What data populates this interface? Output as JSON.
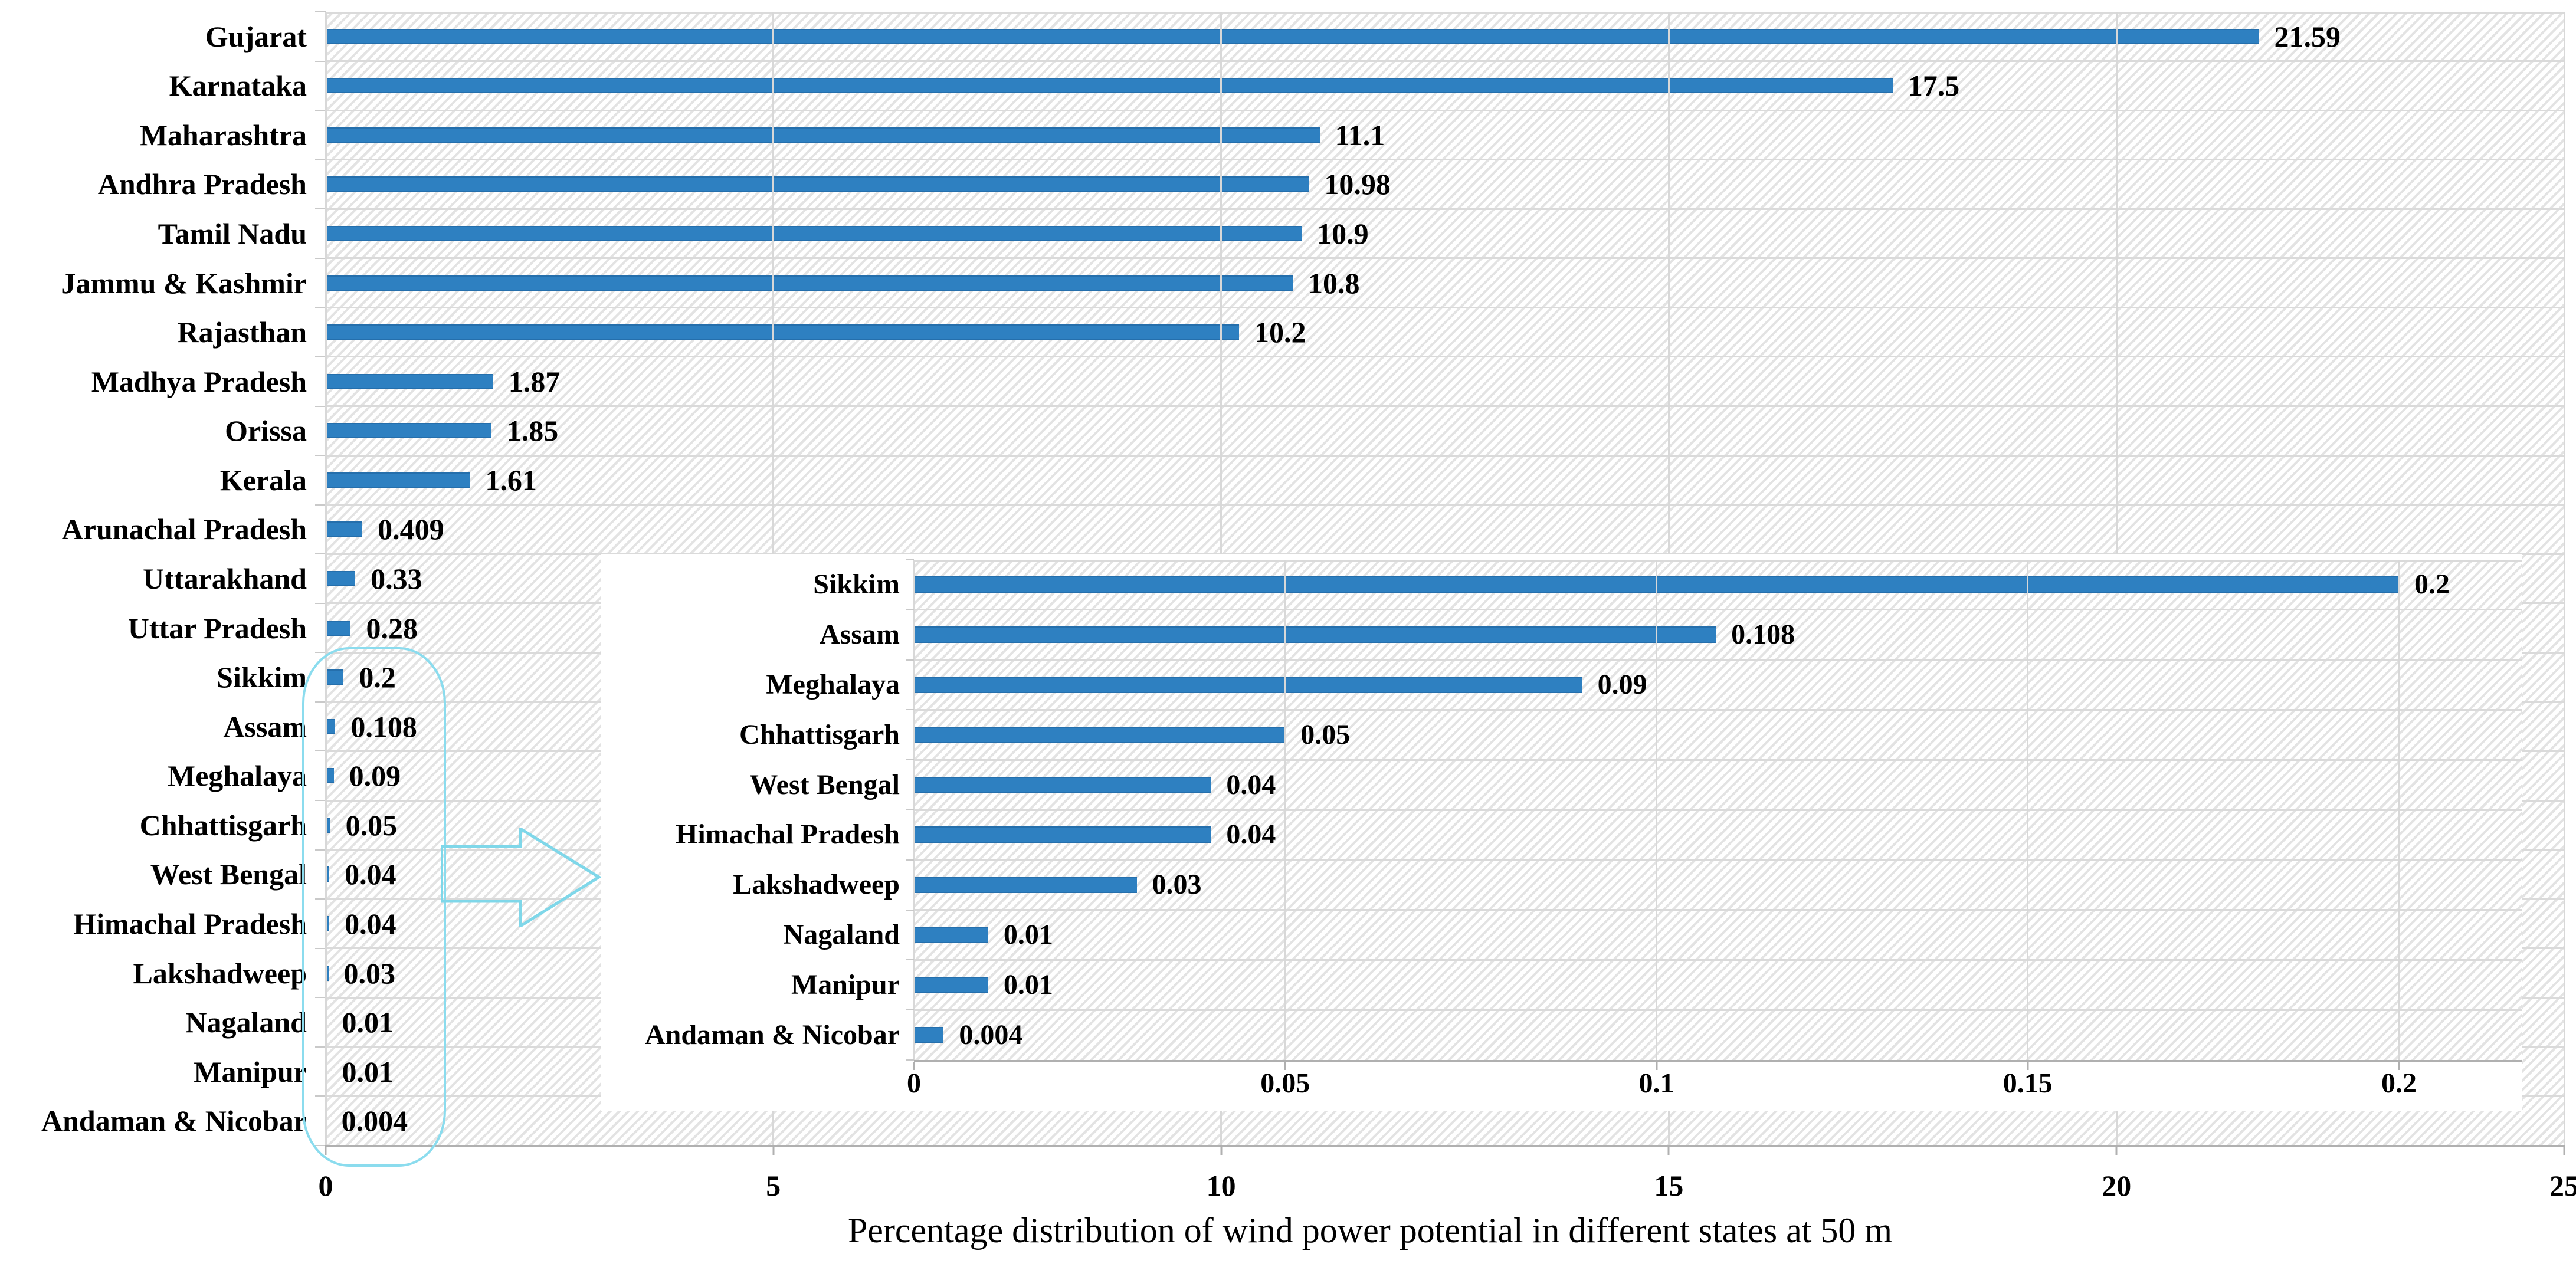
{
  "chart_data": {
    "type": "bar",
    "orientation": "horizontal",
    "title": "Percentage distribution of wind power potential in different states at 50 m",
    "colors": {
      "bar": "#2e80c1",
      "annotation": "#8bdcee",
      "grid": "#d8d8d8",
      "axis": "#b0b0b0",
      "text": "#000000",
      "background": "#ffffff"
    },
    "main_chart": {
      "xlim": [
        0,
        25
      ],
      "x_ticks": [
        "0",
        "5",
        "10",
        "15",
        "20",
        "25"
      ],
      "grid": true,
      "bars": [
        {
          "state": "Gujarat",
          "value": 21.59,
          "label": "21.59"
        },
        {
          "state": "Karnataka",
          "value": 17.5,
          "label": "17.5"
        },
        {
          "state": "Maharashtra",
          "value": 11.1,
          "label": "11.1"
        },
        {
          "state": "Andhra Pradesh",
          "value": 10.98,
          "label": "10.98"
        },
        {
          "state": "Tamil Nadu",
          "value": 10.9,
          "label": "10.9"
        },
        {
          "state": "Jammu & Kashmir",
          "value": 10.8,
          "label": "10.8"
        },
        {
          "state": "Rajasthan",
          "value": 10.2,
          "label": "10.2"
        },
        {
          "state": "Madhya Pradesh",
          "value": 1.87,
          "label": "1.87"
        },
        {
          "state": "Orissa",
          "value": 1.85,
          "label": "1.85"
        },
        {
          "state": "Kerala",
          "value": 1.61,
          "label": "1.61"
        },
        {
          "state": "Arunachal Pradesh",
          "value": 0.409,
          "label": "0.409"
        },
        {
          "state": "Uttarakhand",
          "value": 0.33,
          "label": "0.33"
        },
        {
          "state": "Uttar Pradesh",
          "value": 0.28,
          "label": "0.28"
        },
        {
          "state": "Sikkim",
          "value": 0.2,
          "label": "0.2"
        },
        {
          "state": "Assam",
          "value": 0.108,
          "label": "0.108"
        },
        {
          "state": "Meghalaya",
          "value": 0.09,
          "label": "0.09"
        },
        {
          "state": "Chhattisgarh",
          "value": 0.05,
          "label": "0.05"
        },
        {
          "state": "West Bengal",
          "value": 0.04,
          "label": "0.04"
        },
        {
          "state": "Himachal Pradesh",
          "value": 0.04,
          "label": "0.04"
        },
        {
          "state": "Lakshadweep",
          "value": 0.03,
          "label": "0.03"
        },
        {
          "state": "Nagaland",
          "value": 0.01,
          "label": "0.01"
        },
        {
          "state": "Manipur",
          "value": 0.01,
          "label": "0.01"
        },
        {
          "state": "Andaman & Nicobar",
          "value": 0.004,
          "label": "0.004"
        }
      ]
    },
    "inset_chart": {
      "xlim": [
        0,
        0.2
      ],
      "x_ticks": [
        "0",
        "0.05",
        "0.1",
        "0.15",
        "0.2"
      ],
      "grid": true,
      "bars": [
        {
          "state": "Sikkim",
          "value": 0.2,
          "label": "0.2"
        },
        {
          "state": "Assam",
          "value": 0.108,
          "label": "0.108"
        },
        {
          "state": "Meghalaya",
          "value": 0.09,
          "label": "0.09"
        },
        {
          "state": "Chhattisgarh",
          "value": 0.05,
          "label": "0.05"
        },
        {
          "state": "West Bengal",
          "value": 0.04,
          "label": "0.04"
        },
        {
          "state": "Himachal Pradesh",
          "value": 0.04,
          "label": "0.04"
        },
        {
          "state": "Lakshadweep",
          "value": 0.03,
          "label": "0.03"
        },
        {
          "state": "Nagaland",
          "value": 0.01,
          "label": "0.01"
        },
        {
          "state": "Manipur",
          "value": 0.01,
          "label": "0.01"
        },
        {
          "state": "Andaman & Nicobar",
          "value": 0.004,
          "label": "0.004"
        }
      ]
    },
    "annotations": {
      "ellipse_note": "cyan outline highlighting low-value states near zero on the main axis",
      "arrow_note": "cyan hollow arrow pointing from highlighted region to zoomed inset chart"
    }
  }
}
